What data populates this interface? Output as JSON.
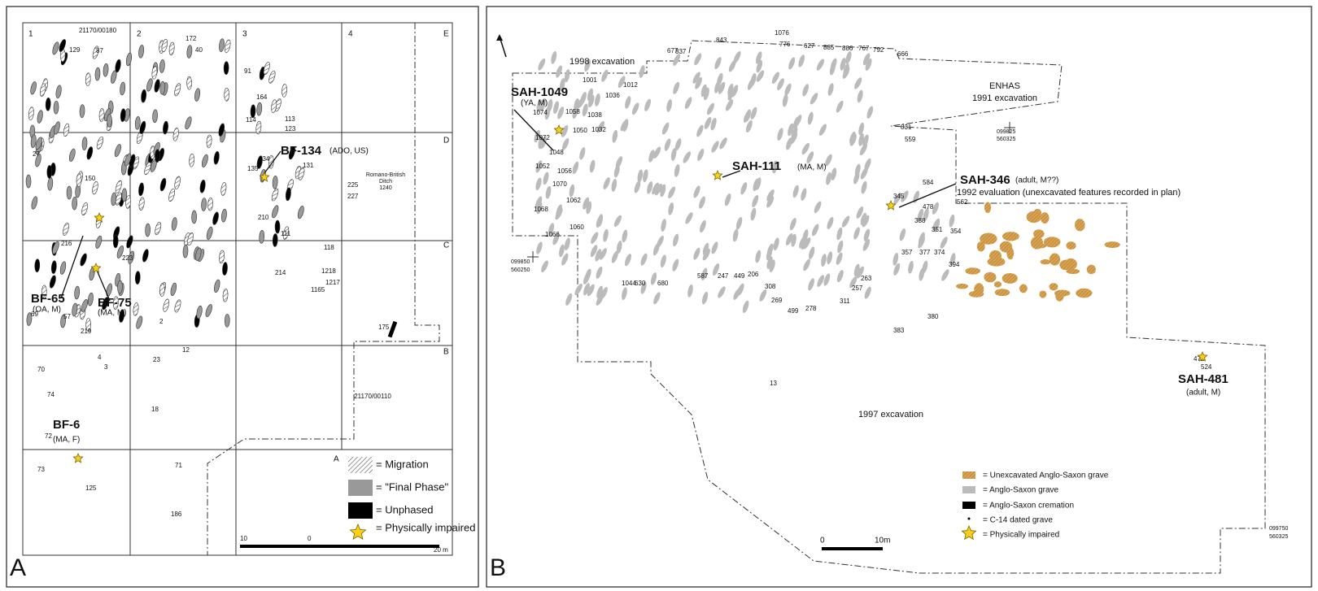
{
  "panel_a": {
    "letter": "A",
    "grid_labels": [
      "1",
      "2",
      "3",
      "4",
      "E",
      "D",
      "C",
      "B",
      "A"
    ],
    "sheet_labels": [
      "21170/00180",
      "21170/00110"
    ],
    "ditch_label": [
      "Romano-British",
      "Ditch",
      "1240"
    ],
    "callouts": [
      {
        "label": "BF-134",
        "note": "(ADO, US)"
      },
      {
        "label": "BF-65",
        "note": "(OA, M)"
      },
      {
        "label": "BF-75",
        "note": "(MA, M)"
      },
      {
        "label": "BF-6",
        "note": "(MA, F)"
      }
    ],
    "legend": [
      "= Migration",
      "= \"Final Phase\"",
      "= Unphased",
      "= Physically impaired"
    ],
    "scale": [
      "10",
      "0",
      "20 m"
    ],
    "grave_numbers": [
      "129",
      "87",
      "172",
      "40",
      "91",
      "164",
      "114",
      "113",
      "123",
      "27",
      "150",
      "216",
      "223",
      "134",
      "135",
      "131",
      "225",
      "227",
      "210",
      "111",
      "118",
      "214",
      "1218",
      "1217",
      "1165",
      "219",
      "4",
      "3",
      "23",
      "70",
      "74",
      "72",
      "18",
      "73",
      "125",
      "71",
      "186",
      "175",
      "12",
      "2",
      "57",
      "69"
    ]
  },
  "panel_b": {
    "letter": "B",
    "area_labels": [
      "1998 excavation",
      "ENHAS",
      "1991 excavation",
      "1992 evaluation (unexcavated features recorded in plan)",
      "1997 excavation"
    ],
    "coordinates": [
      "099850",
      "560250",
      "099825",
      "560325",
      "099750",
      "560325"
    ],
    "callouts": [
      {
        "label": "SAH-1049",
        "note": "(YA, M)"
      },
      {
        "label": "SAH-111",
        "note": "(MA, M)"
      },
      {
        "label": "SAH-346",
        "note": "(adult, M??)"
      },
      {
        "label": "SAH-481",
        "note": "(adult, M)"
      }
    ],
    "legend": [
      "= Unexcavated Anglo-Saxon grave",
      "= Anglo-Saxon grave",
      "= Anglo-Saxon cremation",
      "= C-14 dated grave",
      "= Physically impaired"
    ],
    "scale": [
      "0",
      "10m"
    ],
    "grave_numbers": [
      "843",
      "1076",
      "776",
      "627",
      "885",
      "886",
      "767",
      "792",
      "666",
      "677",
      "837",
      "1001",
      "1012",
      "1036",
      "1058",
      "1074",
      "1050",
      "1038",
      "1032",
      "1072",
      "1048",
      "1052",
      "1056",
      "1070",
      "1062",
      "1068",
      "1060",
      "1066",
      "1044",
      "630",
      "680",
      "587",
      "247",
      "449",
      "206",
      "308",
      "269",
      "499",
      "278",
      "311",
      "257",
      "263",
      "831",
      "559",
      "584",
      "478",
      "562",
      "388",
      "351",
      "354",
      "357",
      "377",
      "374",
      "394",
      "380",
      "383",
      "13",
      "472",
      "524",
      "345"
    ]
  }
}
